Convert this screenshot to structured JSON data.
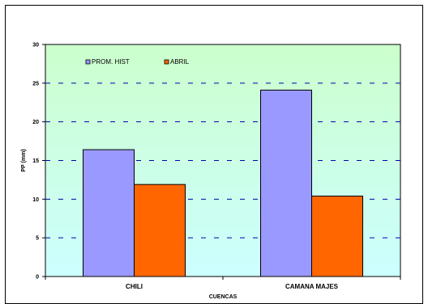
{
  "chart_data": {
    "type": "bar",
    "categories": [
      "CHILI",
      "CAMANA MAJES"
    ],
    "series": [
      {
        "name": "PROM. HIST",
        "values": [
          16.4,
          24.1
        ],
        "color": "#9999ff"
      },
      {
        "name": "ABRIL",
        "values": [
          11.9,
          10.4
        ],
        "color": "#ff6600"
      }
    ],
    "xlabel": "CUENCAS",
    "ylabel": "PP (mm)",
    "ylim": [
      0,
      30
    ],
    "yticks": [
      0,
      5,
      10,
      15,
      20,
      25,
      30
    ],
    "grid": true,
    "legend": "top-left",
    "background_gradient": [
      "#ccffcc",
      "#ccffff"
    ]
  }
}
